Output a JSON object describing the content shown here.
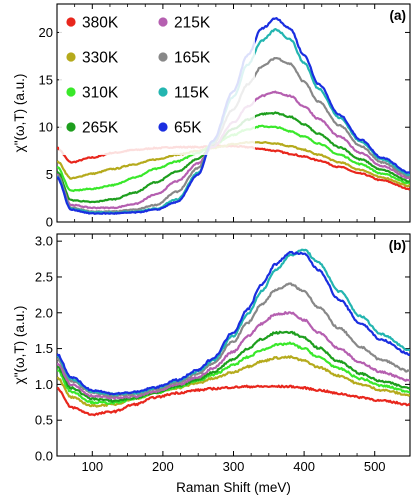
{
  "chart_data": [
    {
      "panel": "(a)",
      "type": "line",
      "xlim": [
        50,
        550
      ],
      "ylim": [
        0,
        23
      ],
      "xlabel": "",
      "ylabel": "χ\"(ω,T) (a.u.)",
      "yticks": [
        0,
        5,
        10,
        15,
        20
      ],
      "legend": "top-left, two columns",
      "x": [
        50,
        70,
        100,
        130,
        160,
        190,
        220,
        250,
        270,
        300,
        320,
        340,
        360,
        380,
        400,
        420,
        450,
        480,
        510,
        550
      ],
      "series": [
        {
          "name": "380K",
          "color": "#e8261c",
          "values": [
            7.8,
            6.3,
            6.8,
            7.3,
            7.6,
            7.8,
            7.9,
            7.9,
            8.0,
            8.0,
            7.9,
            7.7,
            7.5,
            7.2,
            6.9,
            6.5,
            5.8,
            5.1,
            4.4,
            3.5
          ]
        },
        {
          "name": "330K",
          "color": "#b5aa1c",
          "values": [
            6.4,
            4.6,
            5.1,
            5.6,
            6.1,
            6.6,
            7.1,
            7.5,
            7.8,
            8.2,
            8.4,
            8.4,
            8.3,
            8.0,
            7.6,
            7.1,
            6.3,
            5.5,
            4.7,
            3.8
          ]
        },
        {
          "name": "310K",
          "color": "#39e82a",
          "values": [
            5.8,
            3.3,
            3.5,
            3.9,
            4.7,
            5.6,
            6.4,
            7.3,
            8.1,
            9.2,
            9.8,
            10.1,
            10.0,
            9.6,
            9.0,
            8.3,
            7.1,
            6.1,
            5.1,
            4.1
          ]
        },
        {
          "name": "265K",
          "color": "#1d9e1d",
          "values": [
            5.3,
            2.3,
            2.1,
            2.4,
            3.1,
            4.2,
            5.3,
            6.7,
            8.0,
            9.8,
            10.8,
            11.4,
            11.5,
            11.1,
            10.3,
            9.3,
            7.9,
            6.6,
            5.5,
            4.3
          ]
        },
        {
          "name": "215K",
          "color": "#b55fb0",
          "values": [
            5.0,
            1.8,
            1.5,
            1.5,
            1.9,
            2.9,
            4.3,
            6.2,
            7.9,
            10.5,
            12.2,
            13.3,
            13.7,
            13.3,
            12.2,
            10.9,
            9.0,
            7.3,
            5.9,
            4.6
          ]
        },
        {
          "name": "165K",
          "color": "#888888",
          "values": [
            4.9,
            1.5,
            1.1,
            1.1,
            1.3,
            1.8,
            3.2,
            5.7,
            8.2,
            11.9,
            14.5,
            16.4,
            17.3,
            16.7,
            14.8,
            12.7,
            10.2,
            8.0,
            6.3,
            4.8
          ]
        },
        {
          "name": "115K",
          "color": "#23b5b0",
          "values": [
            4.8,
            1.4,
            1.0,
            1.0,
            1.1,
            1.4,
            2.4,
            5.2,
            8.4,
            13.2,
            16.6,
            19.1,
            20.3,
            19.3,
            16.8,
            14.1,
            11.0,
            8.5,
            6.6,
            5.0
          ]
        },
        {
          "name": "65K",
          "color": "#1a2ee0",
          "values": [
            4.7,
            1.3,
            0.9,
            0.9,
            1.0,
            1.3,
            2.1,
            5.0,
            8.5,
            13.8,
            17.6,
            20.4,
            21.5,
            20.4,
            17.6,
            14.6,
            11.3,
            8.7,
            6.8,
            5.2
          ]
        }
      ]
    },
    {
      "panel": "(b)",
      "type": "line",
      "xlim": [
        50,
        550
      ],
      "ylim": [
        0,
        3.1
      ],
      "xlabel": "Raman Shift (meV)",
      "ylabel": "χ\"(ω,T) (a.u.)",
      "xticks": [
        100,
        200,
        300,
        400,
        500
      ],
      "yticks": [
        0.0,
        0.5,
        1.0,
        1.5,
        2.0,
        2.5,
        3.0
      ],
      "x": [
        50,
        70,
        100,
        130,
        160,
        190,
        220,
        250,
        270,
        300,
        320,
        340,
        360,
        380,
        400,
        420,
        450,
        480,
        510,
        550
      ],
      "series": [
        {
          "name": "380K",
          "color": "#e8261c",
          "values": [
            0.95,
            0.68,
            0.58,
            0.62,
            0.72,
            0.82,
            0.88,
            0.92,
            0.94,
            0.96,
            0.97,
            0.97,
            0.97,
            0.97,
            0.95,
            0.92,
            0.87,
            0.82,
            0.77,
            0.72
          ]
        },
        {
          "name": "330K",
          "color": "#b5aa1c",
          "values": [
            1.1,
            0.82,
            0.7,
            0.72,
            0.8,
            0.88,
            0.95,
            1.02,
            1.08,
            1.17,
            1.25,
            1.32,
            1.37,
            1.38,
            1.33,
            1.24,
            1.12,
            1.0,
            0.92,
            0.85
          ]
        },
        {
          "name": "310K",
          "color": "#39e82a",
          "values": [
            1.2,
            0.9,
            0.75,
            0.74,
            0.8,
            0.88,
            0.96,
            1.05,
            1.13,
            1.27,
            1.38,
            1.48,
            1.55,
            1.57,
            1.5,
            1.38,
            1.22,
            1.08,
            0.98,
            0.9
          ]
        },
        {
          "name": "265K",
          "color": "#1d9e1d",
          "values": [
            1.25,
            0.95,
            0.8,
            0.77,
            0.81,
            0.89,
            0.97,
            1.07,
            1.17,
            1.35,
            1.5,
            1.63,
            1.72,
            1.73,
            1.65,
            1.51,
            1.32,
            1.15,
            1.04,
            0.95
          ]
        },
        {
          "name": "215K",
          "color": "#b55fb0",
          "values": [
            1.3,
            1.0,
            0.84,
            0.81,
            0.83,
            0.9,
            0.99,
            1.1,
            1.22,
            1.46,
            1.67,
            1.85,
            1.98,
            2.0,
            1.9,
            1.73,
            1.5,
            1.3,
            1.17,
            1.05
          ]
        },
        {
          "name": "165K",
          "color": "#888888",
          "values": [
            1.35,
            1.05,
            0.88,
            0.84,
            0.86,
            0.93,
            1.02,
            1.15,
            1.29,
            1.6,
            1.86,
            2.12,
            2.32,
            2.4,
            2.3,
            2.08,
            1.78,
            1.52,
            1.34,
            1.18
          ]
        },
        {
          "name": "115K",
          "color": "#23b5b0",
          "values": [
            1.4,
            1.08,
            0.9,
            0.86,
            0.88,
            0.95,
            1.05,
            1.18,
            1.33,
            1.68,
            1.98,
            2.3,
            2.6,
            2.8,
            2.88,
            2.7,
            2.3,
            1.95,
            1.7,
            1.48
          ]
        },
        {
          "name": "65K",
          "color": "#1a2ee0",
          "values": [
            1.42,
            1.1,
            0.92,
            0.87,
            0.89,
            0.96,
            1.06,
            1.2,
            1.36,
            1.73,
            2.05,
            2.4,
            2.68,
            2.84,
            2.82,
            2.6,
            2.18,
            1.85,
            1.62,
            1.42
          ]
        }
      ]
    }
  ]
}
